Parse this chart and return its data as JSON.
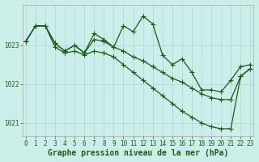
{
  "title": "Graphe pression niveau de la mer (hPa)",
  "bg_color": "#cceee8",
  "grid_color": "#aad8d4",
  "line_color": "#1a5c1a",
  "xlim": [
    -0.3,
    23.3
  ],
  "ylim": [
    1020.65,
    1024.05
  ],
  "yticks": [
    1021,
    1022,
    1023
  ],
  "xticks": [
    0,
    1,
    2,
    3,
    4,
    5,
    6,
    7,
    8,
    9,
    10,
    11,
    12,
    13,
    14,
    15,
    16,
    17,
    18,
    19,
    20,
    21,
    22,
    23
  ],
  "series1": [
    1023.1,
    1023.5,
    1023.5,
    1023.05,
    1022.85,
    1023.0,
    1022.8,
    1023.15,
    1023.1,
    1022.95,
    1023.5,
    1023.35,
    1023.75,
    1023.55,
    1022.75,
    1022.5,
    1022.65,
    1022.3,
    1021.85,
    1021.85,
    1021.8,
    1022.1,
    1022.45,
    1022.5
  ],
  "series2": [
    1023.1,
    1023.5,
    1023.5,
    1023.05,
    1022.85,
    1023.0,
    1022.8,
    1023.3,
    1023.15,
    1022.95,
    1022.85,
    1022.7,
    1022.6,
    1022.45,
    1022.3,
    1022.15,
    1022.05,
    1021.9,
    1021.75,
    1021.65,
    1021.6,
    1021.6,
    1022.2,
    1022.4
  ],
  "series3": [
    1023.1,
    1023.5,
    1023.5,
    1022.95,
    1022.8,
    1022.85,
    1022.75,
    1022.85,
    1022.8,
    1022.7,
    1022.5,
    1022.3,
    1022.1,
    1021.9,
    1021.7,
    1021.5,
    1021.3,
    1021.15,
    1021.0,
    1020.9,
    1020.85,
    1020.85,
    1022.2,
    1022.4
  ],
  "title_fontsize": 7,
  "tick_fontsize": 5.5,
  "lw": 0.9,
  "ms": 2.2
}
